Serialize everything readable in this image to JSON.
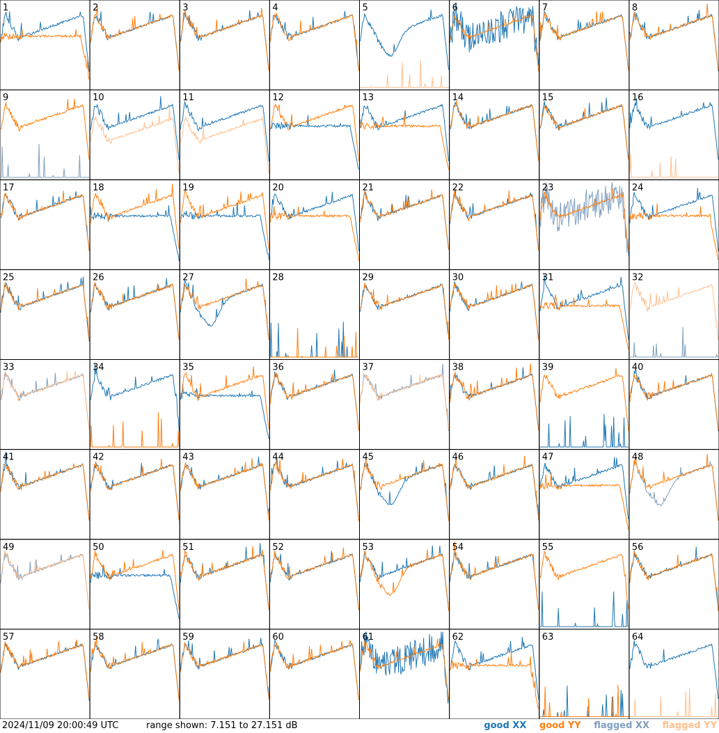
{
  "timestamp": "2024/11/09 20:00:49 UTC",
  "range_text": "range shown: 7.151 to 27.151 dB",
  "legend": {
    "good_xx": "good XX",
    "good_yy": "good YY",
    "flagged_xx": "flagged XX",
    "flagged_yy": "flagged YY"
  },
  "colors": {
    "good_xx": "#1f77b4",
    "good_yy": "#ff7f0e",
    "flagged_xx": "#7f9fbf",
    "flagged_yy": "#ffbf8f",
    "grid": "#000000"
  },
  "chart_data": {
    "type": "line",
    "ylim": [
      7.151,
      27.151
    ],
    "grid": "8x8 small multiples",
    "legend_position": "bottom-right",
    "series_kinds": [
      "good XX",
      "good YY",
      "flagged XX",
      "flagged YY"
    ],
    "panels": [
      {
        "label": "1",
        "xx": "good",
        "yy": "good",
        "xx_shape": "normal",
        "yy_shape": "droop"
      },
      {
        "label": "2",
        "xx": "good",
        "yy": "good",
        "xx_shape": "normal",
        "yy_shape": "normal"
      },
      {
        "label": "3",
        "xx": "good",
        "yy": "good",
        "xx_shape": "normal",
        "yy_shape": "normal"
      },
      {
        "label": "4",
        "xx": "good",
        "yy": "good",
        "xx_shape": "normal",
        "yy_shape": "normal"
      },
      {
        "label": "5",
        "xx": "good",
        "yy": "flagged",
        "xx_shape": "dip",
        "yy_shape": "dead"
      },
      {
        "label": "6",
        "xx": "good",
        "yy": "good",
        "xx_shape": "noisy",
        "yy_shape": "normal"
      },
      {
        "label": "7",
        "xx": "good",
        "yy": "good",
        "xx_shape": "normal",
        "yy_shape": "normal"
      },
      {
        "label": "8",
        "xx": "good",
        "yy": "good",
        "xx_shape": "normal",
        "yy_shape": "normal"
      },
      {
        "label": "9",
        "xx": "flagged",
        "yy": "good",
        "xx_shape": "dead",
        "yy_shape": "normal"
      },
      {
        "label": "10",
        "xx": "good",
        "yy": "flagged",
        "xx_shape": "normal",
        "yy_shape": "low"
      },
      {
        "label": "11",
        "xx": "good",
        "yy": "flagged",
        "xx_shape": "normal",
        "yy_shape": "low"
      },
      {
        "label": "12",
        "xx": "good",
        "yy": "good",
        "xx_shape": "droop",
        "yy_shape": "normal"
      },
      {
        "label": "13",
        "xx": "good",
        "yy": "good",
        "xx_shape": "normal",
        "yy_shape": "droop"
      },
      {
        "label": "14",
        "xx": "good",
        "yy": "good",
        "xx_shape": "normal",
        "yy_shape": "normal"
      },
      {
        "label": "15",
        "xx": "good",
        "yy": "good",
        "xx_shape": "normal",
        "yy_shape": "normal"
      },
      {
        "label": "16",
        "xx": "good",
        "yy": "flagged",
        "xx_shape": "normal",
        "yy_shape": "dead"
      },
      {
        "label": "17",
        "xx": "good",
        "yy": "good",
        "xx_shape": "normal",
        "yy_shape": "normal"
      },
      {
        "label": "18",
        "xx": "good",
        "yy": "good",
        "xx_shape": "droop",
        "yy_shape": "normal"
      },
      {
        "label": "19",
        "xx": "good",
        "yy": "good",
        "xx_shape": "droop",
        "yy_shape": "normal"
      },
      {
        "label": "20",
        "xx": "good",
        "yy": "good",
        "xx_shape": "normal",
        "yy_shape": "droop"
      },
      {
        "label": "21",
        "xx": "good",
        "yy": "good",
        "xx_shape": "normal",
        "yy_shape": "normal"
      },
      {
        "label": "22",
        "xx": "good",
        "yy": "good",
        "xx_shape": "normal",
        "yy_shape": "normal"
      },
      {
        "label": "23",
        "xx": "flagged",
        "yy": "good",
        "xx_shape": "noisy",
        "yy_shape": "normal"
      },
      {
        "label": "24",
        "xx": "good",
        "yy": "good",
        "xx_shape": "normal",
        "yy_shape": "droop"
      },
      {
        "label": "25",
        "xx": "good",
        "yy": "good",
        "xx_shape": "normal",
        "yy_shape": "normal"
      },
      {
        "label": "26",
        "xx": "good",
        "yy": "good",
        "xx_shape": "normal",
        "yy_shape": "normal"
      },
      {
        "label": "27",
        "xx": "good",
        "yy": "good",
        "xx_shape": "dip",
        "yy_shape": "normal"
      },
      {
        "label": "28",
        "xx": "good",
        "yy": "good",
        "xx_shape": "dead",
        "yy_shape": "dead"
      },
      {
        "label": "29",
        "xx": "good",
        "yy": "good",
        "xx_shape": "normal",
        "yy_shape": "normal"
      },
      {
        "label": "30",
        "xx": "good",
        "yy": "good",
        "xx_shape": "normal",
        "yy_shape": "normal"
      },
      {
        "label": "31",
        "xx": "good",
        "yy": "good",
        "xx_shape": "normal",
        "yy_shape": "droop"
      },
      {
        "label": "32",
        "xx": "flagged",
        "yy": "flagged",
        "xx_shape": "dead",
        "yy_shape": "normal"
      },
      {
        "label": "33",
        "xx": "flagged",
        "yy": "flagged",
        "xx_shape": "normal",
        "yy_shape": "normal"
      },
      {
        "label": "34",
        "xx": "good",
        "yy": "good",
        "xx_shape": "normal",
        "yy_shape": "dead"
      },
      {
        "label": "35",
        "xx": "good",
        "yy": "good",
        "xx_shape": "droop",
        "yy_shape": "normal"
      },
      {
        "label": "36",
        "xx": "good",
        "yy": "good",
        "xx_shape": "normal",
        "yy_shape": "normal"
      },
      {
        "label": "37",
        "xx": "flagged",
        "yy": "flagged",
        "xx_shape": "normal",
        "yy_shape": "normal"
      },
      {
        "label": "38",
        "xx": "good",
        "yy": "good",
        "xx_shape": "normal",
        "yy_shape": "normal"
      },
      {
        "label": "39",
        "xx": "good",
        "yy": "good",
        "xx_shape": "dead",
        "yy_shape": "normal"
      },
      {
        "label": "40",
        "xx": "good",
        "yy": "good",
        "xx_shape": "normal",
        "yy_shape": "normal"
      },
      {
        "label": "41",
        "xx": "good",
        "yy": "good",
        "xx_shape": "normal",
        "yy_shape": "normal"
      },
      {
        "label": "42",
        "xx": "good",
        "yy": "good",
        "xx_shape": "normal",
        "yy_shape": "normal"
      },
      {
        "label": "43",
        "xx": "good",
        "yy": "good",
        "xx_shape": "normal",
        "yy_shape": "normal"
      },
      {
        "label": "44",
        "xx": "good",
        "yy": "good",
        "xx_shape": "normal",
        "yy_shape": "normal"
      },
      {
        "label": "45",
        "xx": "good",
        "yy": "good",
        "xx_shape": "dip",
        "yy_shape": "normal"
      },
      {
        "label": "46",
        "xx": "good",
        "yy": "good",
        "xx_shape": "normal",
        "yy_shape": "normal"
      },
      {
        "label": "47",
        "xx": "good",
        "yy": "good",
        "xx_shape": "normal",
        "yy_shape": "droop"
      },
      {
        "label": "48",
        "xx": "flagged",
        "yy": "good",
        "xx_shape": "dip",
        "yy_shape": "normal"
      },
      {
        "label": "49",
        "xx": "flagged",
        "yy": "flagged",
        "xx_shape": "normal",
        "yy_shape": "normal"
      },
      {
        "label": "50",
        "xx": "good",
        "yy": "good",
        "xx_shape": "droop",
        "yy_shape": "normal"
      },
      {
        "label": "51",
        "xx": "good",
        "yy": "good",
        "xx_shape": "normal",
        "yy_shape": "normal"
      },
      {
        "label": "52",
        "xx": "good",
        "yy": "good",
        "xx_shape": "normal",
        "yy_shape": "normal"
      },
      {
        "label": "53",
        "xx": "good",
        "yy": "good",
        "xx_shape": "normal",
        "yy_shape": "dip"
      },
      {
        "label": "54",
        "xx": "good",
        "yy": "good",
        "xx_shape": "normal",
        "yy_shape": "normal"
      },
      {
        "label": "55",
        "xx": "good",
        "yy": "good",
        "xx_shape": "dead",
        "yy_shape": "normal"
      },
      {
        "label": "56",
        "xx": "good",
        "yy": "good",
        "xx_shape": "normal",
        "yy_shape": "normal"
      },
      {
        "label": "57",
        "xx": "good",
        "yy": "good",
        "xx_shape": "normal",
        "yy_shape": "normal"
      },
      {
        "label": "58",
        "xx": "good",
        "yy": "good",
        "xx_shape": "normal",
        "yy_shape": "normal"
      },
      {
        "label": "59",
        "xx": "good",
        "yy": "good",
        "xx_shape": "normal",
        "yy_shape": "normal"
      },
      {
        "label": "60",
        "xx": "good",
        "yy": "good",
        "xx_shape": "normal",
        "yy_shape": "normal"
      },
      {
        "label": "61",
        "xx": "good",
        "yy": "good",
        "xx_shape": "noisy",
        "yy_shape": "normal"
      },
      {
        "label": "62",
        "xx": "good",
        "yy": "good",
        "xx_shape": "normal",
        "yy_shape": "droop"
      },
      {
        "label": "63",
        "xx": "good",
        "yy": "good",
        "xx_shape": "dead",
        "yy_shape": "dead"
      },
      {
        "label": "64",
        "xx": "good",
        "yy": "flagged",
        "xx_shape": "normal",
        "yy_shape": "dead"
      }
    ]
  }
}
